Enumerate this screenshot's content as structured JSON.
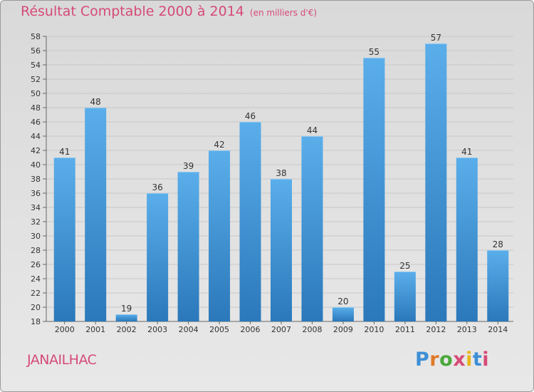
{
  "chart_data": {
    "type": "bar",
    "title": "Résultat Comptable 2000 à 2014",
    "subtitle": "(en milliers d'€)",
    "categories": [
      "2000",
      "2001",
      "2002",
      "2003",
      "2004",
      "2005",
      "2006",
      "2007",
      "2008",
      "2009",
      "2010",
      "2011",
      "2012",
      "2013",
      "2014"
    ],
    "values": [
      41,
      48,
      19,
      36,
      39,
      42,
      46,
      38,
      44,
      20,
      55,
      25,
      57,
      41,
      28
    ],
    "ylim": [
      18,
      58
    ],
    "ytick_step": 2,
    "xlabel": "",
    "ylabel": "",
    "grid": true,
    "bar_color": "#3d8fd6"
  },
  "commune": "JANAILHAC",
  "logo": {
    "text": "Proxiti",
    "letter_colors": [
      "#3d8fd6",
      "#e07a2a",
      "#4aa83a",
      "#d64a77",
      "#e8b41a",
      "#3d8fd6",
      "#d64a77"
    ]
  }
}
